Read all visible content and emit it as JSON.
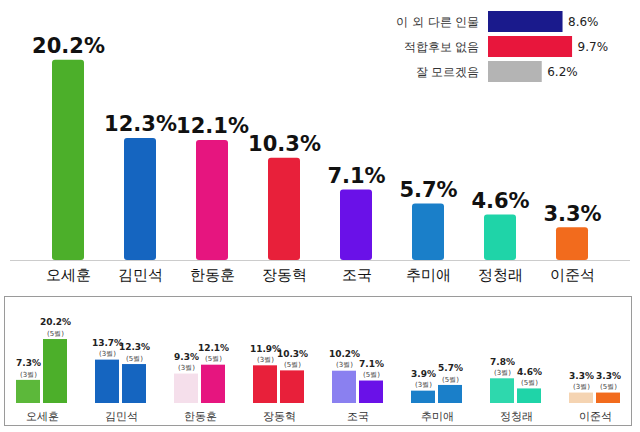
{
  "chart_data": [
    {
      "type": "bar",
      "categories": [
        "오세훈",
        "김민석",
        "한동훈",
        "장동혁",
        "조국",
        "추미애",
        "정청래",
        "이준석"
      ],
      "values": [
        20.2,
        12.3,
        12.1,
        10.3,
        7.1,
        5.7,
        4.6,
        3.3
      ],
      "value_labels": [
        "20.2%",
        "12.3%",
        "12.1%",
        "10.3%",
        "7.1%",
        "5.7%",
        "4.6%",
        "3.3%"
      ],
      "colors": [
        "#4caf2a",
        "#1565c0",
        "#e6157f",
        "#e8203a",
        "#6a11e8",
        "#1a7fc9",
        "#1fd4a8",
        "#f26b1d"
      ],
      "ylim": [
        0,
        24
      ],
      "data_labels": true,
      "tick_labels": "x"
    },
    {
      "type": "bar",
      "orientation": "horizontal",
      "categories": [
        "이 외 다른 인물",
        "적합후보 없음",
        "잘 모르겠음"
      ],
      "values": [
        8.6,
        9.7,
        6.2
      ],
      "value_labels": [
        "8.6%",
        "9.7%",
        "6.2%"
      ],
      "colors": [
        "#1a1a8c",
        "#e8163c",
        "#b4b4b4"
      ],
      "xlim": [
        0,
        12
      ],
      "data_labels": true,
      "tick_labels": "y"
    },
    {
      "type": "bar",
      "categories": [
        "오세훈",
        "김민석",
        "한동훈",
        "장동혁",
        "조국",
        "추미애",
        "정청래",
        "이준석"
      ],
      "series": [
        {
          "name": "(3월)",
          "values": [
            7.3,
            13.7,
            9.3,
            11.9,
            10.2,
            3.9,
            7.8,
            3.3
          ],
          "value_labels": [
            "7.3%",
            "13.7%",
            "9.3%",
            "11.9%",
            "10.2%",
            "3.9%",
            "7.8%",
            "3.3%"
          ],
          "colors": [
            "#5cb83a",
            "#1565c0",
            "#f5dfeb",
            "#e8203a",
            "#8a80f0",
            "#1a7fc9",
            "#2ed8ad",
            "#f5d4b2"
          ]
        },
        {
          "name": "(5월)",
          "values": [
            20.2,
            12.3,
            12.1,
            10.3,
            7.1,
            5.7,
            4.6,
            3.3
          ],
          "value_labels": [
            "20.2%",
            "12.3%",
            "12.1%",
            "10.3%",
            "7.1%",
            "5.7%",
            "4.6%",
            "3.3%"
          ],
          "colors": [
            "#4caf2a",
            "#1565c0",
            "#e6157f",
            "#e8203a",
            "#6a11e8",
            "#1a7fc9",
            "#1fd4a8",
            "#f26b1d"
          ]
        }
      ],
      "ylim": [
        0,
        24
      ],
      "data_labels": true,
      "tick_labels": "x"
    }
  ]
}
